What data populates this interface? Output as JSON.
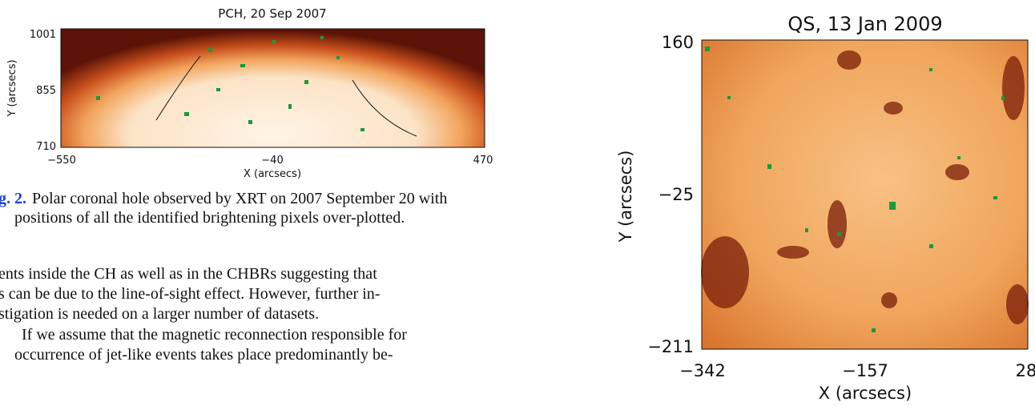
{
  "figure_left": {
    "title": "PCH, 20 Sep 2007",
    "y_label": "Y (arcsecs)",
    "x_label": "X (arcsecs)",
    "y_ticks": [
      "1001",
      "855",
      "710"
    ],
    "x_ticks": [
      "−550",
      "−40",
      "470"
    ]
  },
  "caption": {
    "label": "g. 2.",
    "lines": [
      "Polar coronal hole observed by XRT on 2007 September 20 with",
      "positions of all the identified brightening pixels over-plotted."
    ]
  },
  "body": {
    "lines": [
      "ents inside the CH as well as in the CHBRs suggesting that",
      "s can be due to the line-of-sight effect. However, further in-",
      "stigation is needed on a larger number of datasets.",
      "If we assume that the magnetic reconnection responsible for",
      "occurrence of jet-like events takes place predominantly be-"
    ]
  },
  "figure_right": {
    "title": "QS, 13 Jan 2009",
    "y_label": "Y (arcsecs)",
    "x_label": "X (arcsecs)",
    "y_ticks": [
      "160",
      "−25",
      "−211"
    ],
    "x_ticks": [
      "−342",
      "−157",
      "28"
    ]
  }
}
